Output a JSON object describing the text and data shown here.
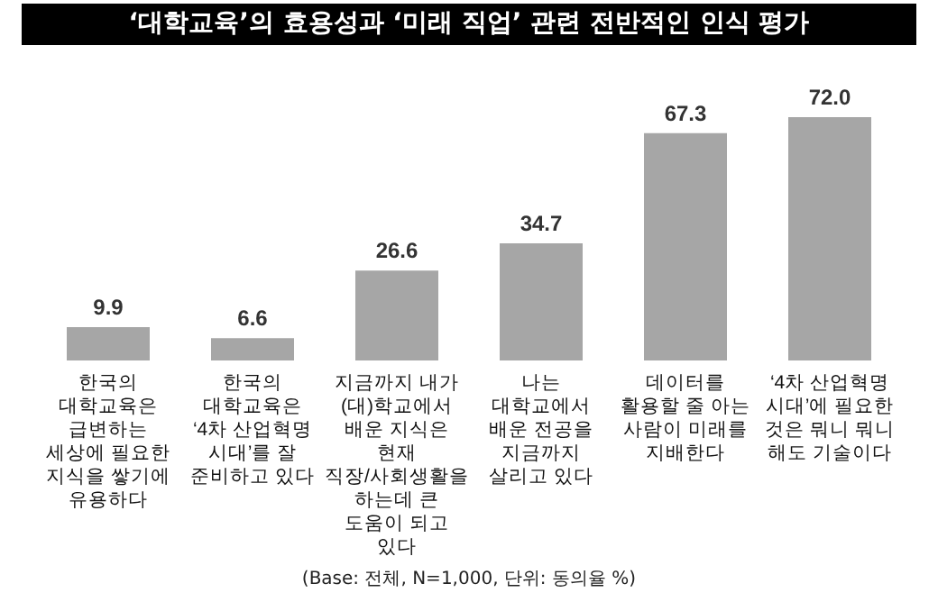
{
  "chart_data": {
    "type": "bar",
    "title": "‘대학교육’의 효용성과 ‘미래 직업’ 관련 전반적인 인식 평가",
    "categories": [
      "한국의 대학교육은 급변하는 세상에 필요한 지식을 쌓기에 유용하다",
      "한국의 대학교육은 ‘4차 산업혁명 시대’를 잘 준비하고 있다",
      "지금까지 내가 (대)학교에서 배운 지식은 현재 직장/사회생활을 하는데 큰 도움이 되고 있다",
      "나는 대학교에서 배운 전공을 지금까지 살리고 있다",
      "데이터를 활용할 줄 아는 사람이 미래를 지배한다",
      "‘4차 산업혁명 시대’에 필요한 것은 뭐니 뭐니 해도 기술이다"
    ],
    "values": [
      9.9,
      6.6,
      26.6,
      34.7,
      67.3,
      72.0
    ],
    "value_labels": [
      "9.9",
      "6.6",
      "26.6",
      "34.7",
      "67.3",
      "72.0"
    ],
    "color": "#a6a6a6",
    "annotations": [
      "(Base: 전체, N=1,000, 단위: 동의율 %)"
    ]
  }
}
